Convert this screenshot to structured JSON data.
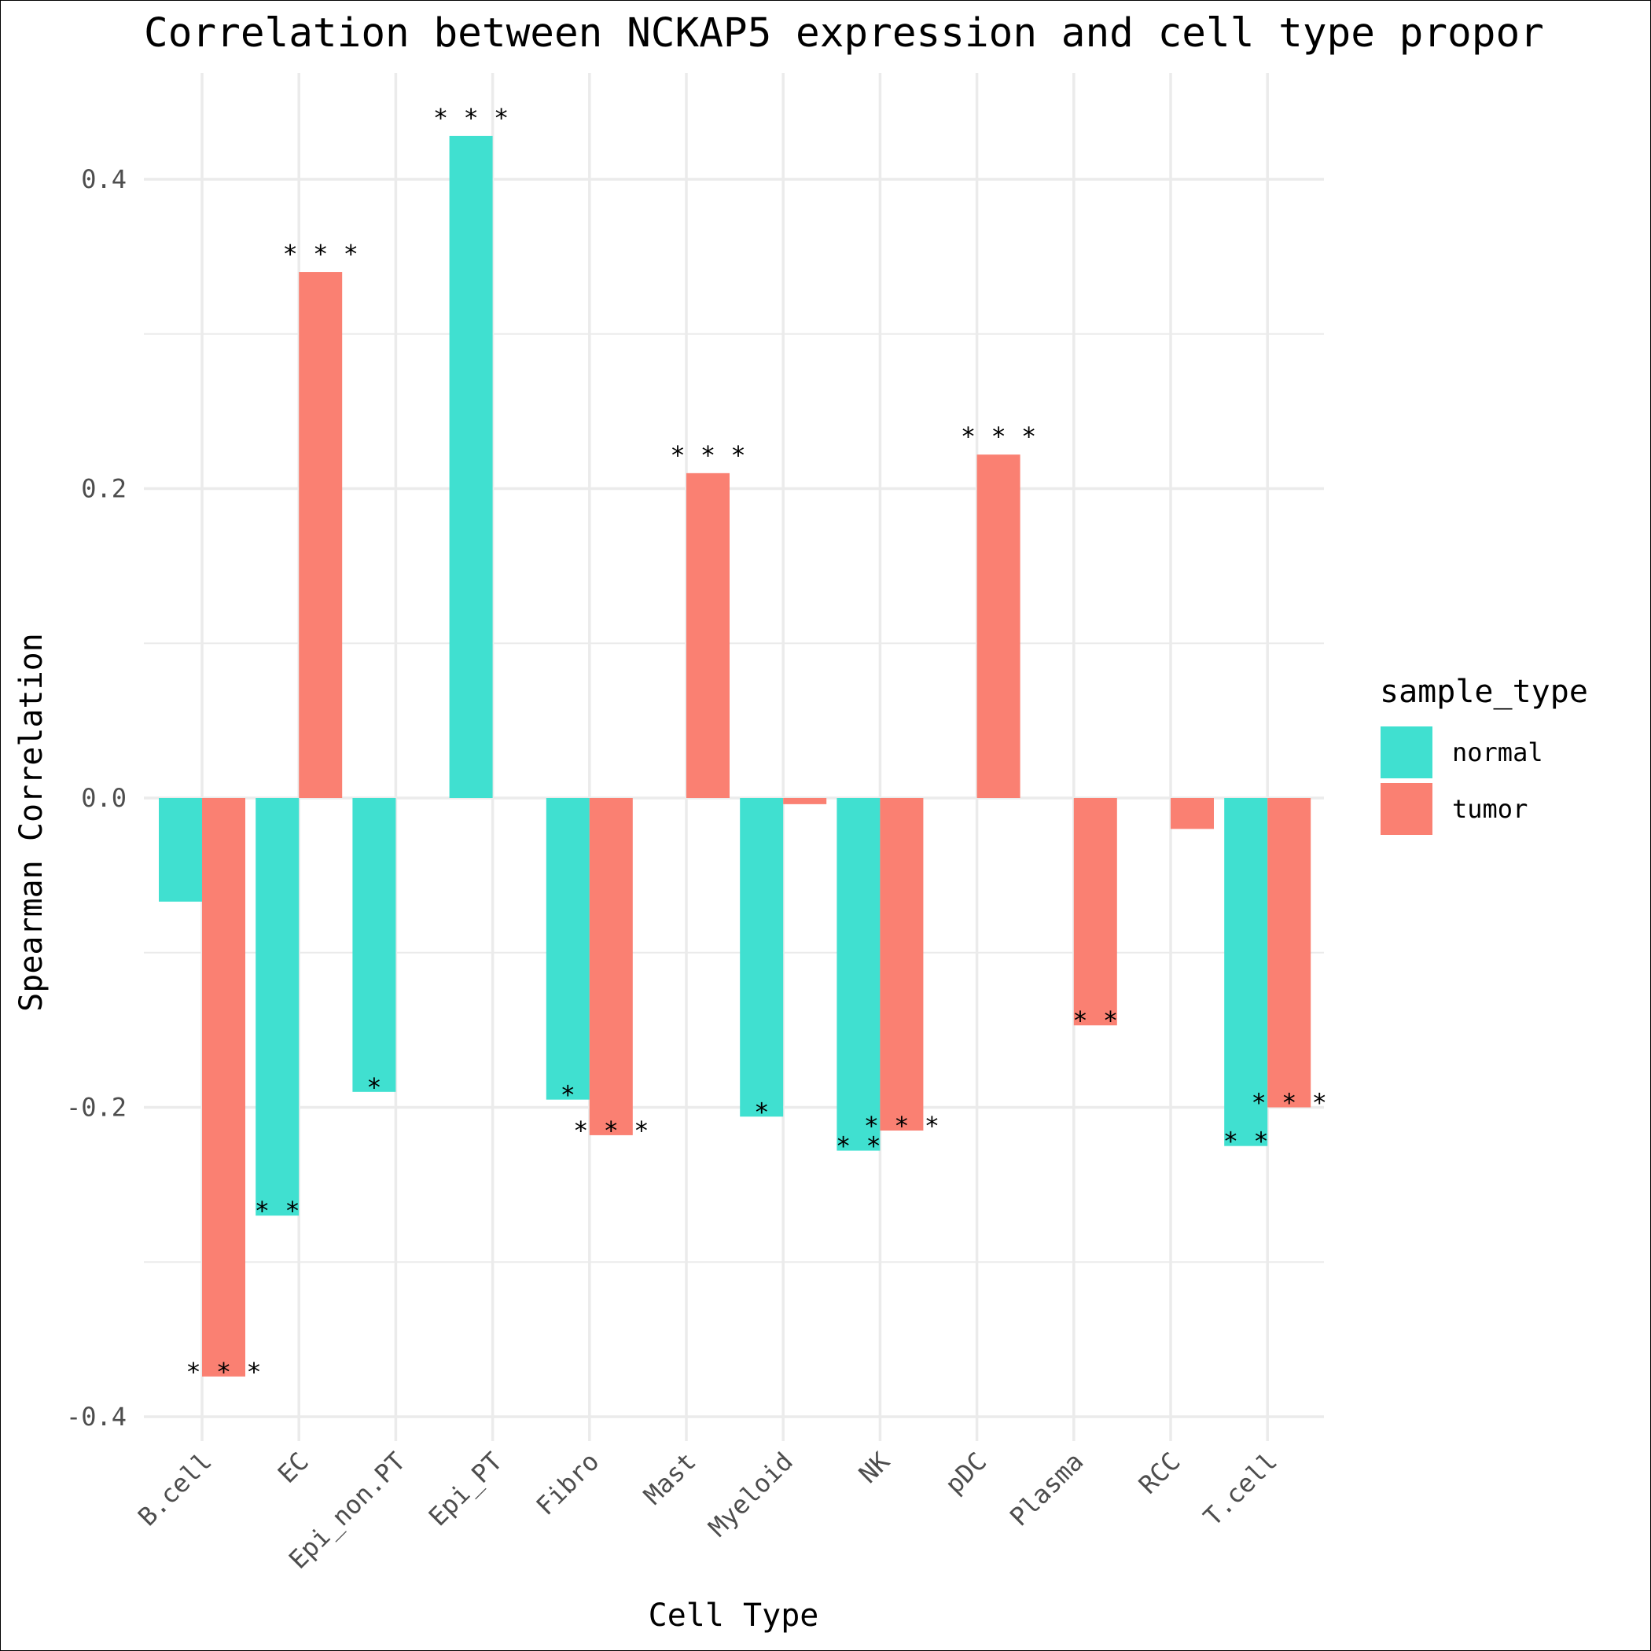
{
  "chart_data": {
    "type": "bar",
    "title": "Correlation between NCKAP5 expression and cell type propor",
    "xlabel": "Cell Type",
    "ylabel": "Spearman Correlation",
    "categories": [
      "B.cell",
      "EC",
      "Epi_non.PT",
      "Epi_PT",
      "Fibro",
      "Mast",
      "Myeloid",
      "NK",
      "pDC",
      "Plasma",
      "RCC",
      "T.cell"
    ],
    "series": [
      {
        "name": "normal",
        "color": "#40e0d0",
        "values": [
          -0.067,
          -0.27,
          -0.19,
          0.428,
          -0.195,
          null,
          -0.206,
          -0.228,
          null,
          null,
          null,
          -0.225
        ],
        "significance": [
          "",
          "**",
          "*",
          "***",
          "*",
          "",
          "*",
          "**",
          "",
          "",
          "",
          "**"
        ]
      },
      {
        "name": "tumor",
        "color": "#fa8072",
        "values": [
          -0.374,
          0.34,
          null,
          null,
          -0.218,
          0.21,
          -0.004,
          -0.215,
          0.222,
          -0.147,
          -0.02,
          -0.2
        ],
        "significance": [
          "***",
          "***",
          "",
          "",
          "***",
          "***",
          "",
          "***",
          "***",
          "**",
          "",
          "***"
        ]
      }
    ],
    "ylim": [
      -0.42,
      0.47
    ],
    "yticks": [
      -0.4,
      -0.2,
      0.0,
      0.2,
      0.4
    ],
    "ytick_labels": [
      "-0.4",
      "-0.2",
      "0.0",
      "0.2",
      "0.4"
    ],
    "grid": true,
    "legend": {
      "title": "sample_type",
      "position": "right"
    }
  }
}
